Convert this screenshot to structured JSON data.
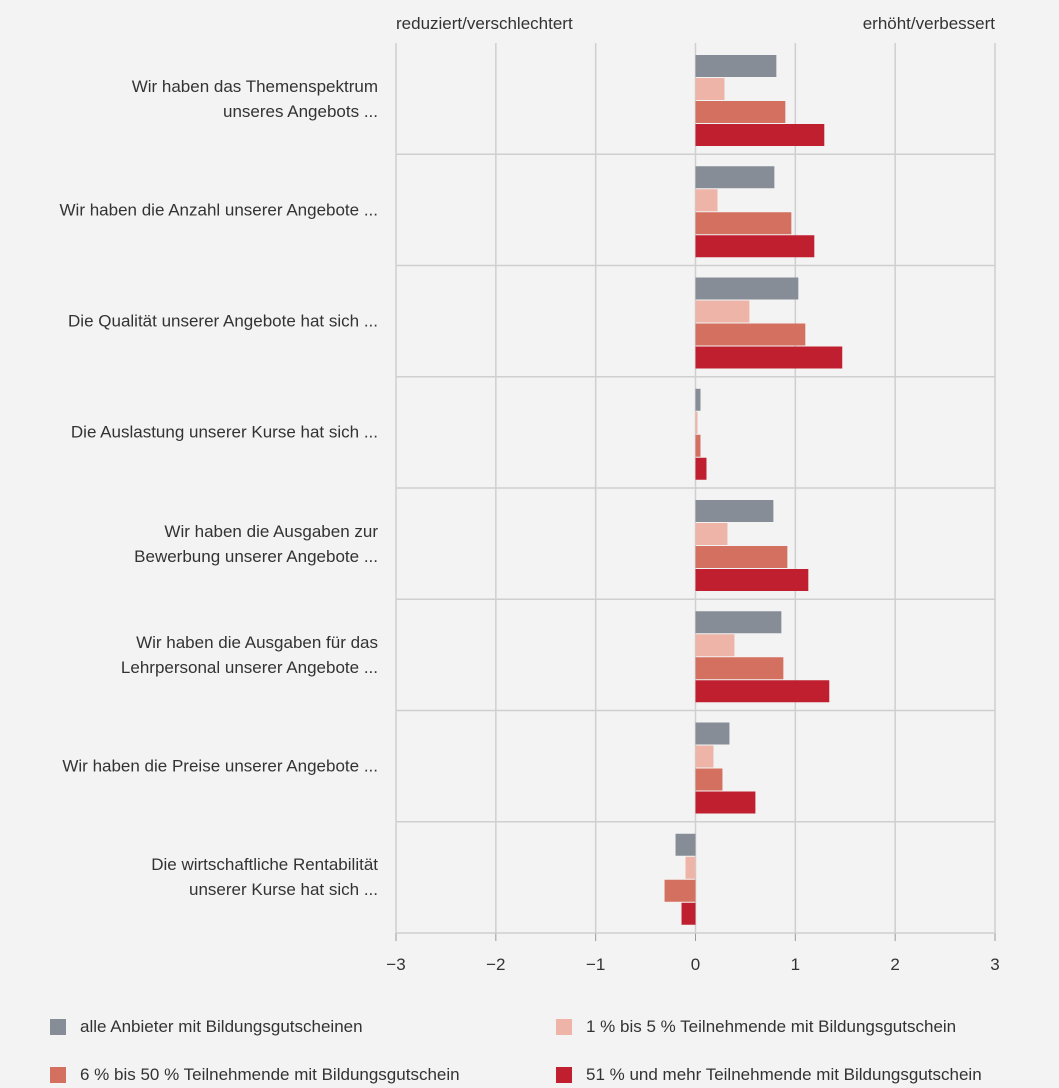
{
  "chart_data": {
    "type": "hbar",
    "left_label": "reduziert/verschlechtert",
    "right_label": "erhöht/verbessert",
    "categories": [
      "Wir haben das Themenspektrum\nunseres Angebots ...",
      "Wir haben die Anzahl unserer Angebote ...",
      "Die Qualität unserer Angebote hat sich ...",
      "Die Auslastung unserer Kurse hat sich ...",
      "Wir haben die Ausgaben zur\nBewerbung unserer Angebote ...",
      "Wir haben die Ausgaben für das\nLehrpersonal unserer Angebote ...",
      "Wir haben die Preise unserer Angebote ...",
      "Die wirtschaftliche Rentabilität\nunserer Kurse hat sich ..."
    ],
    "series": [
      {
        "name": "alle Anbieter mit Bildungsgutscheinen",
        "color": "#878d96",
        "values": [
          0.81,
          0.79,
          1.03,
          0.05,
          0.78,
          0.86,
          0.34,
          -0.2
        ]
      },
      {
        "name": "1 % bis 5 % Teilnehmende mit Bildungsgutschein",
        "color": "#eeb4a8",
        "values": [
          0.29,
          0.22,
          0.54,
          0.02,
          0.32,
          0.39,
          0.18,
          -0.1
        ]
      },
      {
        "name": "6 % bis 50 % Teilnehmende mit Bildungsgutschein",
        "color": "#d4705f",
        "values": [
          0.9,
          0.96,
          1.1,
          0.05,
          0.92,
          0.88,
          0.27,
          -0.31
        ]
      },
      {
        "name": "51 % und mehr Teilnehmende mit Bildungsgutschein",
        "color": "#c01f2f",
        "values": [
          1.29,
          1.19,
          1.47,
          0.11,
          1.13,
          1.34,
          0.6,
          -0.14
        ]
      }
    ],
    "xlim": [
      -3,
      3
    ],
    "xticks": [
      {
        "value": -3,
        "label": "−3"
      },
      {
        "value": -2,
        "label": "−2"
      },
      {
        "value": -1,
        "label": "−1"
      },
      0,
      1,
      2,
      3
    ],
    "grid": true
  }
}
